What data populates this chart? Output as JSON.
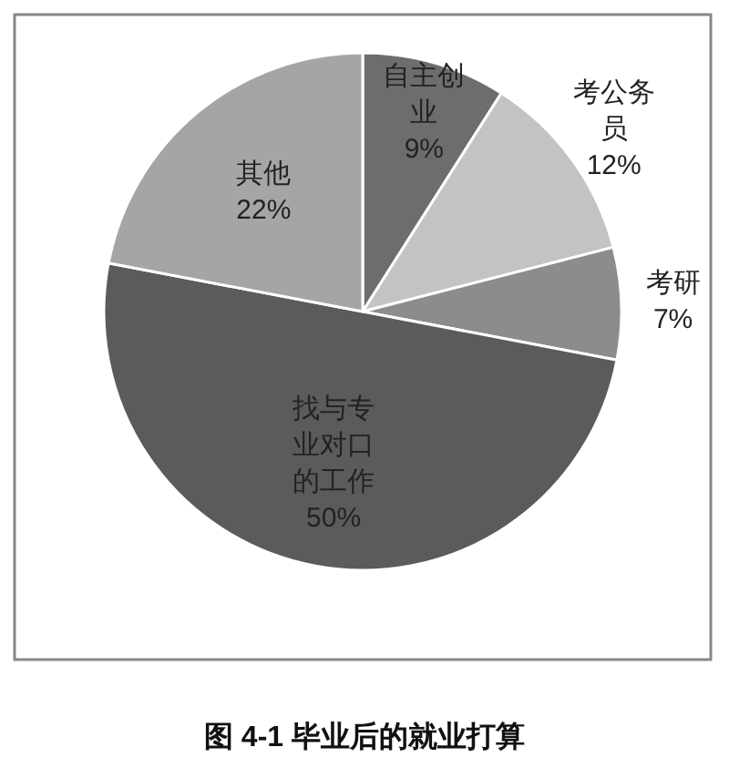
{
  "chart_data": {
    "type": "pie",
    "categories": [
      "自主创业",
      "考公务员",
      "考研",
      "找与专业对口的工作",
      "其他"
    ],
    "values": [
      9,
      12,
      7,
      50,
      22
    ],
    "colors": [
      "#6d6d6d",
      "#c3c3c3",
      "#8c8c8c",
      "#5b5b5b",
      "#a5a5a5"
    ],
    "value_labels": [
      "9%",
      "12%",
      "7%",
      "50%",
      "22%"
    ],
    "annotations": [
      "图 4-1 毕业后的就业打算"
    ]
  }
}
